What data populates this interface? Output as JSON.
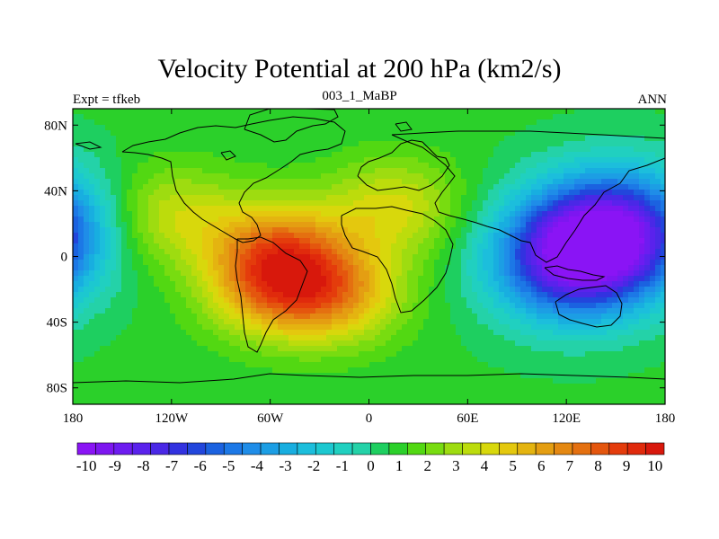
{
  "title": "Velocity Potential at 200 hPa (km2/s)",
  "left_string": "Expt = tfkeb",
  "center_string": "003_1_MaBP",
  "right_string": "ANN",
  "map": {
    "projection": "cylindrical equidistant",
    "lon_range": [
      -180,
      180
    ],
    "lat_range": [
      -90,
      90
    ],
    "x_ticks": [
      {
        "lon": -180,
        "label": "180"
      },
      {
        "lon": -120,
        "label": "120W"
      },
      {
        "lon": -60,
        "label": "60W"
      },
      {
        "lon": 0,
        "label": "0"
      },
      {
        "lon": 60,
        "label": "60E"
      },
      {
        "lon": 120,
        "label": "120E"
      },
      {
        "lon": 180,
        "label": "180"
      }
    ],
    "y_ticks": [
      {
        "lat": 80,
        "label": "80N"
      },
      {
        "lat": 40,
        "label": "40N"
      },
      {
        "lat": 0,
        "label": "0"
      },
      {
        "lat": -40,
        "label": "40S"
      },
      {
        "lat": -80,
        "label": "80S"
      }
    ],
    "field_centers": [
      {
        "lon": -55,
        "lat": 5,
        "value": 8.7
      },
      {
        "lon": -20,
        "lat": -22,
        "value": 8.3
      },
      {
        "lon": -60,
        "lat": -20,
        "value": 7.5
      },
      {
        "lon": -120,
        "lat": 25,
        "value": 5.0
      },
      {
        "lon": 15,
        "lat": 30,
        "value": 5.5
      },
      {
        "lon": 135,
        "lat": 5,
        "value": -10.0
      },
      {
        "lon": 155,
        "lat": 20,
        "value": -9.5
      },
      {
        "lon": 120,
        "lat": -5,
        "value": -9.0
      }
    ]
  },
  "colorbar": {
    "colors": [
      "#8a14f5",
      "#7d16f0",
      "#6d1cf0",
      "#5a22ec",
      "#4a28e6",
      "#3232e0",
      "#2246dc",
      "#1b62e0",
      "#1c78e6",
      "#1f8de8",
      "#1c9ee4",
      "#18aee0",
      "#1cbedc",
      "#1cc8d0",
      "#20d0c0",
      "#24d2a8",
      "#1ecf60",
      "#2bd02a",
      "#52d812",
      "#78dc10",
      "#9edc10",
      "#bcdc0c",
      "#d8d80c",
      "#e4c80e",
      "#e4b410",
      "#e49e12",
      "#e48812",
      "#e47010",
      "#e4560e",
      "#e43c0c",
      "#e02a0c",
      "#d8180c"
    ],
    "labels": [
      "-10",
      "-9",
      "-8",
      "-7",
      "-6",
      "-5",
      "-4",
      "-3",
      "-2",
      "-1",
      "0",
      "1",
      "2",
      "3",
      "4",
      "5",
      "6",
      "7",
      "8",
      "9",
      "10"
    ],
    "min": -10.5,
    "max": 10.5
  }
}
